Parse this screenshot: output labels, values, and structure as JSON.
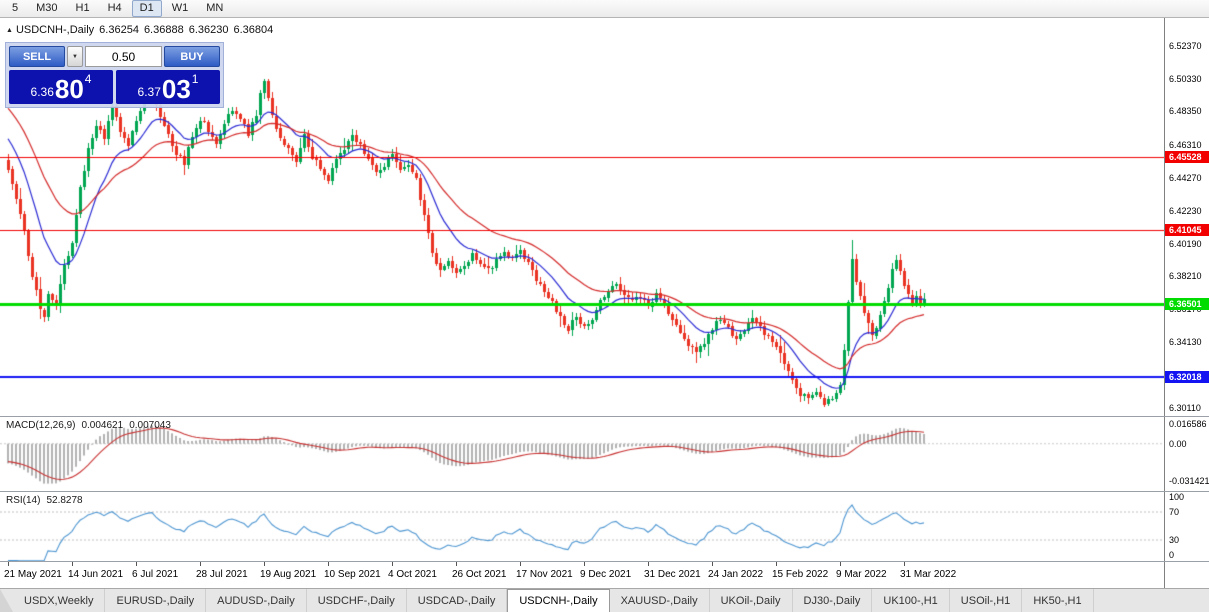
{
  "toolbar": {
    "timeframes": [
      "5",
      "M30",
      "H1",
      "H4",
      "D1",
      "W1",
      "MN"
    ],
    "active": "D1"
  },
  "chart_header": {
    "symbol": "USDCNH-,Daily",
    "open": "6.36254",
    "high": "6.36888",
    "low": "6.36230",
    "close": "6.36804"
  },
  "trade_panel": {
    "sell_label": "SELL",
    "buy_label": "BUY",
    "volume": "0.50",
    "sell_price_small": "6.36",
    "sell_price_big": "80",
    "sell_price_sup": "4",
    "buy_price_small": "6.37",
    "buy_price_big": "03",
    "buy_price_sup": "1"
  },
  "colors": {
    "up": "#00A651",
    "down": "#EA3323",
    "ma_fast": "#2A2AD4",
    "ma_slow": "#D42A2A",
    "macd_hist": "#B2B2B2",
    "macd_signal": "#C83232",
    "rsi_line": "#4E96D1",
    "level_red": "#F20000",
    "level_green": "#00DB00",
    "level_blue": "#1414F2"
  },
  "chart_data": [
    {
      "type": "candlestick",
      "title": "USDCNH-,Daily",
      "ohlc_current": {
        "open": 6.36254,
        "high": 6.36888,
        "low": 6.3623,
        "close": 6.36804
      },
      "y_range": [
        6.296,
        6.541
      ],
      "y_tick_labels": [
        "6.52370",
        "6.50330",
        "6.48350",
        "6.46310",
        "6.44270",
        "6.42230",
        "6.40190",
        "6.38210",
        "6.36170",
        "6.34130",
        "6.32090",
        "6.30110"
      ],
      "x_tick_labels": [
        "21 May 2021",
        "14 Jun 2021",
        "6 Jul 2021",
        "28 Jul 2021",
        "19 Aug 2021",
        "10 Sep 2021",
        "4 Oct 2021",
        "26 Oct 2021",
        "17 Nov 2021",
        "9 Dec 2021",
        "31 Dec 2021",
        "24 Jan 2022",
        "15 Feb 2022",
        "9 Mar 2022",
        "31 Mar 2022"
      ],
      "x_tick_bars": [
        0,
        16,
        32,
        48,
        64,
        80,
        96,
        112,
        128,
        144,
        160,
        176,
        192,
        208,
        224
      ],
      "bars_visible": 230,
      "bar0_x": 8,
      "bar_step": 4,
      "levels": [
        {
          "value": 6.45528,
          "label": "6.45528",
          "color": "#F20000",
          "width": 1
        },
        {
          "value": 6.41045,
          "label": "6.41045",
          "color": "#F20000",
          "width": 1
        },
        {
          "value": 6.36501,
          "label": "6.36501",
          "color": "#00DB00",
          "width": 3
        },
        {
          "value": 6.32018,
          "label": "6.32018",
          "color": "#1414F2",
          "width": 2
        }
      ],
      "moving_averages": [
        {
          "period": 13,
          "color": "#2A2AD4"
        },
        {
          "period": 30,
          "color": "#D42A2A"
        }
      ],
      "preroll_path": [
        [
          -30,
          6.534
        ],
        [
          -25,
          6.521
        ],
        [
          -20,
          6.507
        ],
        [
          -15,
          6.493
        ],
        [
          -10,
          6.478
        ],
        [
          -5,
          6.464
        ],
        [
          -1,
          6.452
        ]
      ],
      "close_path": [
        [
          0,
          6.447
        ],
        [
          2,
          6.43
        ],
        [
          4,
          6.408
        ],
        [
          6,
          6.383
        ],
        [
          8,
          6.363
        ],
        [
          9,
          6.358
        ],
        [
          10,
          6.37
        ],
        [
          12,
          6.364
        ],
        [
          14,
          6.388
        ],
        [
          16,
          6.404
        ],
        [
          18,
          6.436
        ],
        [
          20,
          6.46
        ],
        [
          22,
          6.476
        ],
        [
          24,
          6.468
        ],
        [
          26,
          6.486
        ],
        [
          28,
          6.472
        ],
        [
          30,
          6.464
        ],
        [
          32,
          6.479
        ],
        [
          34,
          6.49
        ],
        [
          36,
          6.498
        ],
        [
          38,
          6.48
        ],
        [
          40,
          6.47
        ],
        [
          42,
          6.457
        ],
        [
          44,
          6.452
        ],
        [
          46,
          6.468
        ],
        [
          48,
          6.479
        ],
        [
          50,
          6.472
        ],
        [
          52,
          6.464
        ],
        [
          54,
          6.477
        ],
        [
          56,
          6.485
        ],
        [
          58,
          6.478
        ],
        [
          60,
          6.47
        ],
        [
          62,
          6.482
        ],
        [
          64,
          6.504
        ],
        [
          65,
          6.492
        ],
        [
          66,
          6.48
        ],
        [
          68,
          6.468
        ],
        [
          70,
          6.46
        ],
        [
          72,
          6.454
        ],
        [
          74,
          6.468
        ],
        [
          76,
          6.456
        ],
        [
          78,
          6.448
        ],
        [
          80,
          6.442
        ],
        [
          82,
          6.454
        ],
        [
          84,
          6.461
        ],
        [
          86,
          6.469
        ],
        [
          88,
          6.462
        ],
        [
          90,
          6.454
        ],
        [
          92,
          6.447
        ],
        [
          94,
          6.451
        ],
        [
          96,
          6.457
        ],
        [
          98,
          6.447
        ],
        [
          100,
          6.451
        ],
        [
          102,
          6.442
        ],
        [
          104,
          6.418
        ],
        [
          106,
          6.396
        ],
        [
          108,
          6.386
        ],
        [
          110,
          6.391
        ],
        [
          112,
          6.384
        ],
        [
          114,
          6.389
        ],
        [
          116,
          6.396
        ],
        [
          118,
          6.391
        ],
        [
          120,
          6.385
        ],
        [
          122,
          6.391
        ],
        [
          124,
          6.397
        ],
        [
          126,
          6.392
        ],
        [
          128,
          6.397
        ],
        [
          130,
          6.389
        ],
        [
          132,
          6.38
        ],
        [
          134,
          6.373
        ],
        [
          136,
          6.366
        ],
        [
          138,
          6.356
        ],
        [
          140,
          6.35
        ],
        [
          142,
          6.358
        ],
        [
          144,
          6.35
        ],
        [
          146,
          6.356
        ],
        [
          148,
          6.366
        ],
        [
          150,
          6.372
        ],
        [
          152,
          6.378
        ],
        [
          154,
          6.372
        ],
        [
          156,
          6.366
        ],
        [
          158,
          6.37
        ],
        [
          160,
          6.364
        ],
        [
          162,
          6.37
        ],
        [
          164,
          6.364
        ],
        [
          166,
          6.356
        ],
        [
          168,
          6.348
        ],
        [
          170,
          6.34
        ],
        [
          172,
          6.334
        ],
        [
          174,
          6.342
        ],
        [
          176,
          6.35
        ],
        [
          178,
          6.356
        ],
        [
          180,
          6.35
        ],
        [
          182,
          6.343
        ],
        [
          184,
          6.35
        ],
        [
          186,
          6.356
        ],
        [
          188,
          6.35
        ],
        [
          190,
          6.344
        ],
        [
          192,
          6.338
        ],
        [
          194,
          6.328
        ],
        [
          196,
          6.318
        ],
        [
          198,
          6.31
        ],
        [
          200,
          6.306
        ],
        [
          202,
          6.31
        ],
        [
          204,
          6.304
        ],
        [
          206,
          6.308
        ],
        [
          208,
          6.314
        ],
        [
          209,
          6.338
        ],
        [
          210,
          6.366
        ],
        [
          211,
          6.394
        ],
        [
          212,
          6.38
        ],
        [
          213,
          6.371
        ],
        [
          214,
          6.36
        ],
        [
          215,
          6.352
        ],
        [
          216,
          6.346
        ],
        [
          217,
          6.35
        ],
        [
          218,
          6.358
        ],
        [
          219,
          6.367
        ],
        [
          220,
          6.376
        ],
        [
          221,
          6.385
        ],
        [
          222,
          6.391
        ],
        [
          223,
          6.384
        ],
        [
          224,
          6.376
        ],
        [
          225,
          6.369
        ],
        [
          226,
          6.364
        ],
        [
          227,
          6.371
        ],
        [
          228,
          6.366
        ],
        [
          229,
          6.368
        ]
      ]
    },
    {
      "type": "bar",
      "name": "MACD",
      "label": "MACD(12,26,9)",
      "value_main": "0.004621",
      "value_signal": "0.007043",
      "params": [
        12,
        26,
        9
      ],
      "y_tick_labels": [
        "0.016586",
        "0.00",
        "-0.031421"
      ],
      "y_range": [
        -0.04,
        0.0235
      ]
    },
    {
      "type": "line",
      "name": "RSI",
      "label": "RSI(14)",
      "value": "52.8278",
      "period": 14,
      "y_tick_labels": [
        "100",
        "70",
        "30",
        "0"
      ],
      "levels": [
        70,
        30
      ],
      "y_range": [
        0,
        100
      ]
    }
  ],
  "tabs": {
    "active_index": 5,
    "items": [
      "USDX,Weekly",
      "EURUSD-,Daily",
      "AUDUSD-,Daily",
      "USDCHF-,Daily",
      "USDCAD-,Daily",
      "USDCNH-,Daily",
      "XAUUSD-,Daily",
      "UKOil-,Daily",
      "DJ30-,Daily",
      "UK100-,H1",
      "USOil-,H1",
      "HK50-,H1"
    ]
  }
}
